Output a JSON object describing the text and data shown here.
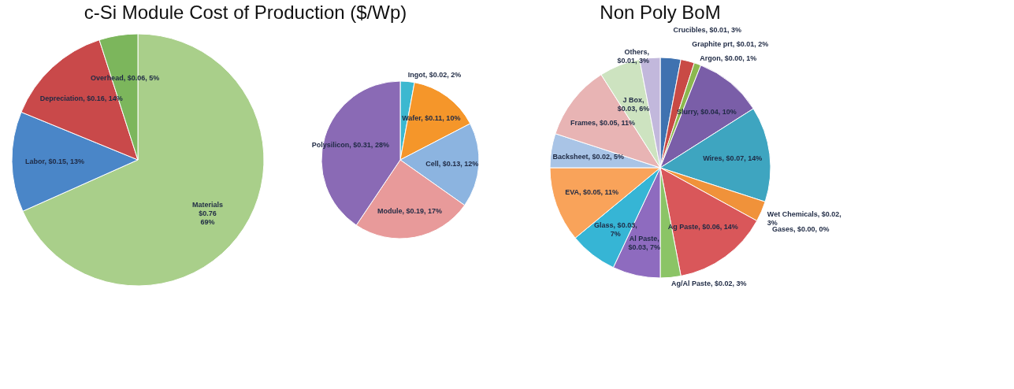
{
  "chart_data": [
    {
      "type": "pie",
      "title": "c-Si Module Cost of Production ($/Wp)",
      "categories": [
        "Materials",
        "Labor",
        "Depreciation",
        "Overhead"
      ],
      "values": [
        69,
        13,
        14,
        5
      ],
      "colors": [
        "#a9cf8a",
        "#4a86c8",
        "#c9494a",
        "#7cb65c"
      ],
      "value_labels": [
        "\n$0.76\n69%",
        ", $0.15, 13%",
        ", $0.16, 14%",
        ", $0.06, 5%"
      ]
    },
    {
      "type": "pie",
      "categories": [
        "Ingot",
        "Wafer",
        "Cell",
        "Module",
        "Polysilicon"
      ],
      "values": [
        2,
        10,
        12,
        17,
        28
      ],
      "colors": [
        "#3cb8d0",
        "#f5962a",
        "#8cb4e0",
        "#e89a9a",
        "#8a6ab5"
      ],
      "value_labels": [
        ", $0.02, 2%",
        ", $0.11, 10%",
        ", $0.13, 12%",
        ", $0.19, 17%",
        ", $0.31, 28%"
      ]
    },
    {
      "type": "pie",
      "title": "Non Poly BoM",
      "categories": [
        "Crucibles",
        "Graphite prt",
        "Argon",
        "Slurry",
        "Wires",
        "Wet Chemicals",
        "Gases",
        "Ag Paste",
        "Ag/Al Paste",
        "Al Paste",
        "Glass",
        "EVA",
        "Backsheet",
        "Frames",
        "J Box",
        "Others"
      ],
      "values": [
        3,
        2,
        1,
        10,
        14,
        3,
        0,
        14,
        3,
        7,
        7,
        11,
        5,
        11,
        6,
        3
      ],
      "colors": [
        "#3f72b0",
        "#c94a45",
        "#8cb84f",
        "#7a5ea8",
        "#3ea5c0",
        "#f0923a",
        "#9db6d8",
        "#d9575a",
        "#8bc466",
        "#8e6bbf",
        "#36b5d5",
        "#f9a35a",
        "#a9c4e6",
        "#e8b4b4",
        "#cde3c0",
        "#c2b8dc"
      ],
      "value_labels": [
        ", $0.01, 3%",
        ", $0.01, 2%",
        ", $0.00, 1%",
        ", $0.04, 10%",
        ", $0.07, 14%",
        ", $0.02,\n3%",
        ", $0.00, 0%",
        ", $0.06, 14%",
        ", $0.02, 3%",
        ",\n$0.03, 7%",
        ", $0.03,\n7%",
        ", $0.05, 11%",
        ", $0.02, 5%",
        ", $0.05, 11%",
        ",\n$0.03, 6%",
        ",\n$0.01, 3%"
      ]
    }
  ]
}
